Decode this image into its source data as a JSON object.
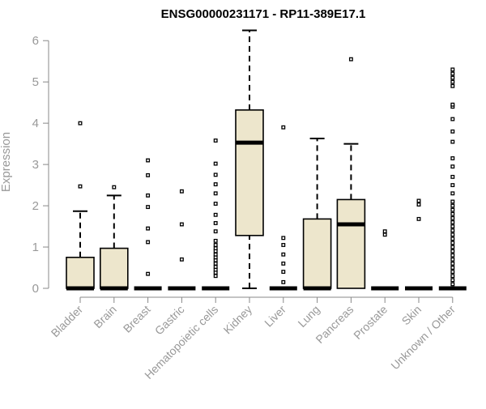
{
  "chart_data": {
    "type": "boxplot",
    "title": "ENSG00000231171 - RP11-389E17.1",
    "ylabel": "Expression",
    "xlabel": "",
    "ylim": [
      0,
      6.2
    ],
    "yticks": [
      0,
      1,
      2,
      3,
      4,
      5,
      6
    ],
    "grid": false,
    "legend": "none",
    "box_fill": "#ede6cc",
    "categories": [
      "Bladder",
      "Brain",
      "Breast",
      "Gastric",
      "Hematopoietic cells",
      "Kidney",
      "Liver",
      "Lung",
      "Pancreas",
      "Prostate",
      "Skin",
      "Unknown / Other"
    ],
    "boxes": [
      {
        "category": "Bladder",
        "min": 0,
        "q1": 0,
        "median": 0,
        "q3": 0.75,
        "max": 1.87,
        "outliers": [
          2.47,
          4.0
        ]
      },
      {
        "category": "Brain",
        "min": 0,
        "q1": 0,
        "median": 0,
        "q3": 0.97,
        "max": 2.25,
        "outliers": [
          2.45
        ]
      },
      {
        "category": "Breast",
        "min": 0,
        "q1": 0,
        "median": 0,
        "q3": 0,
        "max": 0,
        "outliers": [
          0.35,
          1.12,
          1.45,
          1.97,
          2.25,
          2.74,
          3.1
        ]
      },
      {
        "category": "Gastric",
        "min": 0,
        "q1": 0,
        "median": 0,
        "q3": 0,
        "max": 0,
        "outliers": [
          0.7,
          1.55,
          2.35
        ]
      },
      {
        "category": "Hematopoietic cells",
        "min": 0,
        "q1": 0,
        "median": 0,
        "q3": 0,
        "max": 0,
        "outliers": [
          0.3,
          0.38,
          0.45,
          0.52,
          0.6,
          0.68,
          0.75,
          0.82,
          0.9,
          0.97,
          1.05,
          1.15,
          1.38,
          1.58,
          1.78,
          2.05,
          2.3,
          2.52,
          2.75,
          3.02,
          3.58
        ]
      },
      {
        "category": "Kidney",
        "min": 0,
        "q1": 1.28,
        "median": 3.53,
        "q3": 4.32,
        "max": 6.25,
        "outliers": []
      },
      {
        "category": "Liver",
        "min": 0,
        "q1": 0,
        "median": 0,
        "q3": 0,
        "max": 0,
        "outliers": [
          0.15,
          0.4,
          0.6,
          0.82,
          1.05,
          1.22,
          3.9
        ]
      },
      {
        "category": "Lung",
        "min": 0,
        "q1": 0,
        "median": 0,
        "q3": 1.68,
        "max": 3.63,
        "outliers": []
      },
      {
        "category": "Pancreas",
        "min": 0,
        "q1": 0,
        "median": 1.55,
        "q3": 2.15,
        "max": 3.5,
        "outliers": [
          5.55
        ]
      },
      {
        "category": "Prostate",
        "min": 0,
        "q1": 0,
        "median": 0,
        "q3": 0,
        "max": 0,
        "outliers": [
          1.3,
          1.38
        ]
      },
      {
        "category": "Skin",
        "min": 0,
        "q1": 0,
        "median": 0,
        "q3": 0,
        "max": 0,
        "outliers": [
          1.68,
          2.03,
          2.12
        ]
      },
      {
        "category": "Unknown / Other",
        "min": 0,
        "q1": 0,
        "median": 0,
        "q3": 0,
        "max": 0,
        "outliers": [
          0.1,
          0.2,
          0.3,
          0.4,
          0.5,
          0.6,
          0.7,
          0.8,
          0.9,
          1.0,
          1.1,
          1.2,
          1.3,
          1.4,
          1.5,
          1.6,
          1.7,
          1.8,
          1.9,
          2.0,
          2.1,
          2.3,
          2.5,
          2.7,
          2.95,
          3.15,
          3.55,
          3.8,
          4.1,
          4.4,
          4.45,
          4.9,
          5.0,
          5.1,
          5.2,
          5.3
        ]
      }
    ]
  }
}
